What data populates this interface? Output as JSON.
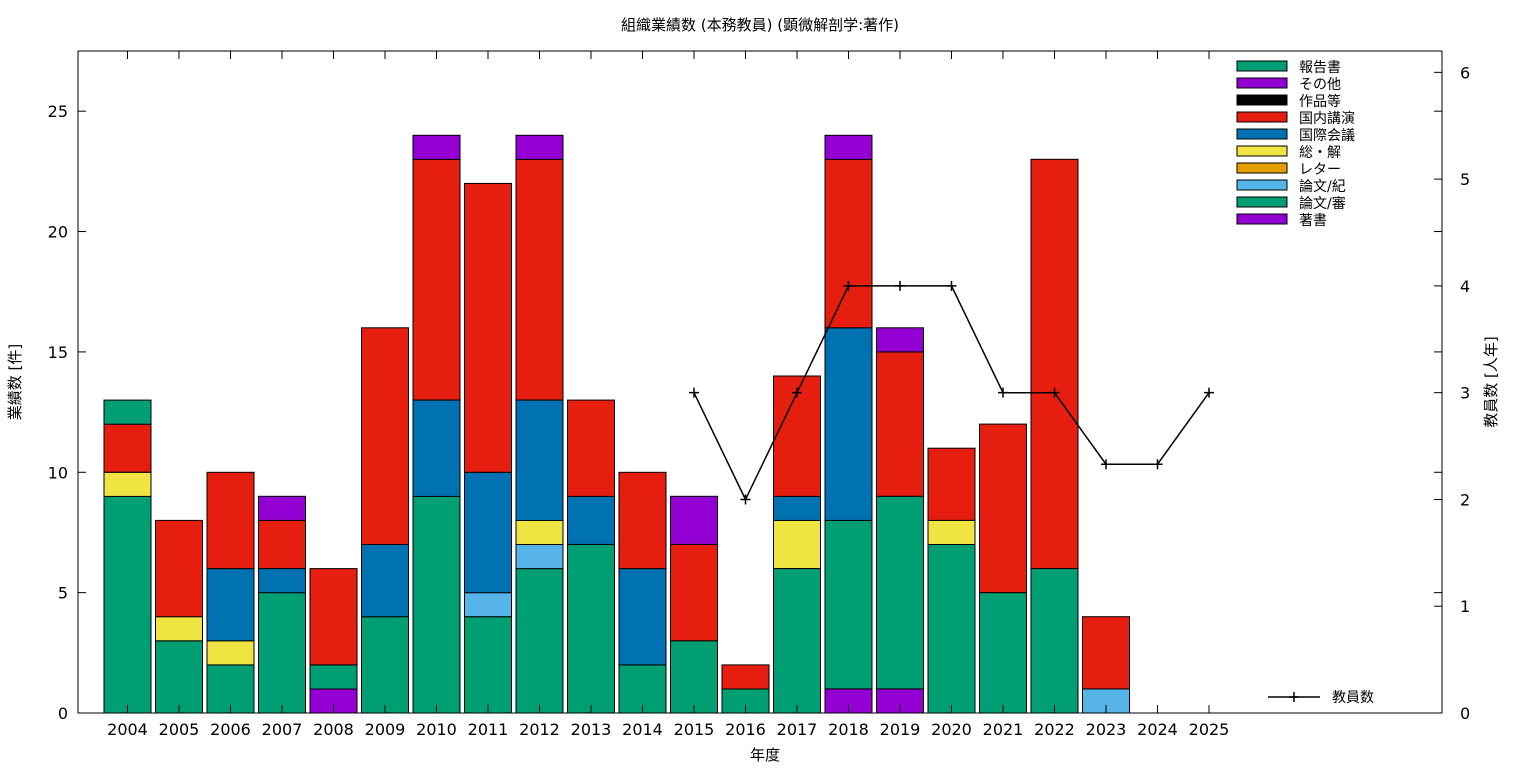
{
  "chart_data": {
    "type": "bar",
    "stacked": true,
    "title": "組織業績数 (本務教員) (顕微解剖学:著作)",
    "xlabel": "年度",
    "ylabel": "業績数 [件]",
    "y2label": "教員数 [人年]",
    "ylim": [
      0,
      27.5
    ],
    "y2lim": [
      0,
      6.2
    ],
    "yticks": [
      "0",
      "5",
      "10",
      "15",
      "20",
      "25"
    ],
    "y2ticks": [
      "0",
      "1",
      "2",
      "3",
      "4",
      "5",
      "6"
    ],
    "grid": false,
    "legend_position": "top-right",
    "categories": [
      "2004",
      "2005",
      "2006",
      "2007",
      "2008",
      "2009",
      "2010",
      "2011",
      "2012",
      "2013",
      "2014",
      "2015",
      "2016",
      "2017",
      "2018",
      "2019",
      "2020",
      "2021",
      "2022",
      "2023",
      "2024",
      "2025"
    ],
    "series": [
      {
        "name": "著書",
        "color": "#9400d3",
        "values": [
          0,
          0,
          0,
          0,
          1,
          0,
          0,
          0,
          0,
          0,
          0,
          0,
          0,
          0,
          1,
          1,
          0,
          0,
          0,
          0,
          0,
          0
        ]
      },
      {
        "name": "論文/審",
        "color": "#009e73",
        "values": [
          9,
          3,
          2,
          5,
          1,
          4,
          9,
          4,
          6,
          7,
          2,
          3,
          1,
          6,
          7,
          8,
          7,
          5,
          6,
          0,
          0,
          0
        ]
      },
      {
        "name": "論文/紀",
        "color": "#56b4e9",
        "values": [
          0,
          0,
          0,
          0,
          0,
          0,
          0,
          1,
          1,
          0,
          0,
          0,
          0,
          0,
          0,
          0,
          0,
          0,
          0,
          1,
          0,
          0
        ]
      },
      {
        "name": "レター",
        "color": "#e69f00",
        "values": [
          0,
          0,
          0,
          0,
          0,
          0,
          0,
          0,
          0,
          0,
          0,
          0,
          0,
          0,
          0,
          0,
          0,
          0,
          0,
          0,
          0,
          0
        ]
      },
      {
        "name": "総・解",
        "color": "#f0e442",
        "values": [
          1,
          1,
          1,
          0,
          0,
          0,
          0,
          0,
          1,
          0,
          0,
          0,
          0,
          2,
          0,
          0,
          1,
          0,
          0,
          0,
          0,
          0
        ]
      },
      {
        "name": "国際会議",
        "color": "#0072b2",
        "values": [
          0,
          0,
          3,
          1,
          0,
          3,
          4,
          5,
          5,
          2,
          4,
          0,
          0,
          1,
          8,
          0,
          0,
          0,
          0,
          0,
          0,
          0
        ]
      },
      {
        "name": "国内講演",
        "color": "#e51e10",
        "values": [
          2,
          4,
          4,
          2,
          4,
          9,
          10,
          12,
          10,
          4,
          4,
          4,
          1,
          5,
          7,
          6,
          3,
          7,
          17,
          3,
          0,
          0
        ]
      },
      {
        "name": "作品等",
        "color": "#000000",
        "values": [
          0,
          0,
          0,
          0,
          0,
          0,
          0,
          0,
          0,
          0,
          0,
          0,
          0,
          0,
          0,
          0,
          0,
          0,
          0,
          0,
          0,
          0
        ]
      },
      {
        "name": "その他",
        "color": "#9400d3",
        "values": [
          0,
          0,
          0,
          1,
          0,
          0,
          1,
          0,
          1,
          0,
          0,
          2,
          0,
          0,
          1,
          1,
          0,
          0,
          0,
          0,
          0,
          0
        ]
      },
      {
        "name": "報告書",
        "color": "#009e73",
        "values": [
          1,
          0,
          0,
          0,
          0,
          0,
          0,
          0,
          0,
          0,
          0,
          0,
          0,
          0,
          0,
          0,
          0,
          0,
          0,
          0,
          0,
          0
        ]
      }
    ],
    "line_series": {
      "name": "教員数",
      "color": "#000000",
      "axis": "y2",
      "x": [
        "2015",
        "2016",
        "2017",
        "2018",
        "2019",
        "2020",
        "2021",
        "2022",
        "2023",
        "2024",
        "2025"
      ],
      "values": [
        3,
        2,
        3,
        4,
        4,
        4,
        3,
        3,
        2.33,
        2.33,
        3
      ]
    }
  }
}
